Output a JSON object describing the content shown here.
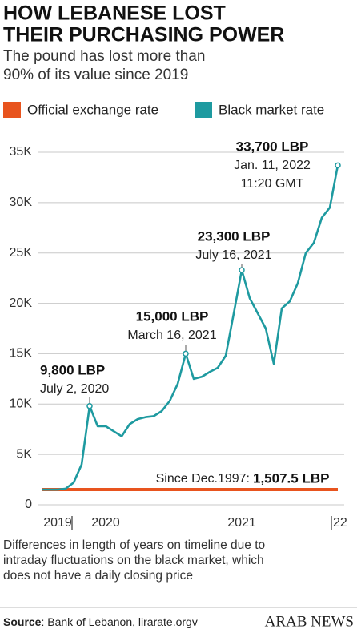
{
  "title_lines": [
    "HOW LEBANESE LOST",
    "THEIR PURCHASING POWER"
  ],
  "subtitle_lines": [
    "The pound has lost more than",
    "90% of its value since 2019"
  ],
  "chart_data": {
    "type": "line",
    "categories": [
      null,
      null,
      "2019",
      null,
      null,
      null,
      null,
      null,
      "2020",
      null,
      null,
      null,
      null,
      null,
      null,
      null,
      null,
      null,
      null,
      null,
      null,
      null,
      null,
      null,
      null,
      "2021",
      null,
      null,
      null,
      null,
      null,
      null,
      null,
      null,
      null,
      null,
      null,
      "22"
    ],
    "series": [
      {
        "name": "Official exchange rate",
        "color": "#e8541e",
        "values": [
          1507.5,
          1507.5,
          1507.5,
          1507.5,
          1507.5,
          1507.5,
          1507.5,
          1507.5,
          1507.5,
          1507.5,
          1507.5,
          1507.5,
          1507.5,
          1507.5,
          1507.5,
          1507.5,
          1507.5,
          1507.5,
          1507.5,
          1507.5,
          1507.5,
          1507.5,
          1507.5,
          1507.5,
          1507.5,
          1507.5,
          1507.5,
          1507.5,
          1507.5,
          1507.5,
          1507.5,
          1507.5,
          1507.5,
          1507.5,
          1507.5,
          1507.5,
          1507.5,
          1507.5
        ]
      },
      {
        "name": "Black market rate",
        "color": "#1e9aa0",
        "values": [
          1500,
          1500,
          1500,
          1600,
          2200,
          4000,
          9800,
          7800,
          7800,
          7300,
          6800,
          8000,
          8500,
          8700,
          8800,
          9300,
          10300,
          12000,
          15000,
          12500,
          12700,
          13200,
          13600,
          14800,
          19000,
          23300,
          20500,
          19000,
          17500,
          14000,
          19500,
          20200,
          22000,
          25000,
          26000,
          28500,
          29500,
          33700
        ]
      }
    ],
    "ylim": [
      0,
      35000
    ],
    "yticks": [
      0,
      {
        "value": 5000,
        "label": "5K"
      },
      {
        "value": 10000,
        "label": "10K"
      },
      {
        "value": 15000,
        "label": "15K"
      },
      {
        "value": 20000,
        "label": "20K"
      },
      {
        "value": 25000,
        "label": "25K"
      },
      {
        "value": 30000,
        "label": "30K"
      },
      {
        "value": 35000,
        "label": "35K"
      }
    ],
    "grid": true,
    "annotations": [
      {
        "index": 6,
        "label": "9,800 LBP",
        "date": "July 2, 2020"
      },
      {
        "index": 18,
        "label": "15,000 LBP",
        "date": "March 16, 2021"
      },
      {
        "index": 25,
        "label": "23,300 LBP",
        "date": "July 16, 2021"
      },
      {
        "index": 37,
        "label": "33,700 LBP",
        "date": "Jan. 11, 2022",
        "time": "11:20 GMT"
      }
    ],
    "official_note": {
      "prefix": "Since Dec.1997:",
      "label": "1,507.5 LBP"
    }
  },
  "footnote_lines": [
    "Differences in length of years on timeline due to",
    "intraday fluctuations  on the black market, which",
    "does not have a daily closing price"
  ],
  "source_label": "Source",
  "source_text": ": Bank of Lebanon, lirarate.orgv",
  "brand": "ARAB NEWS"
}
